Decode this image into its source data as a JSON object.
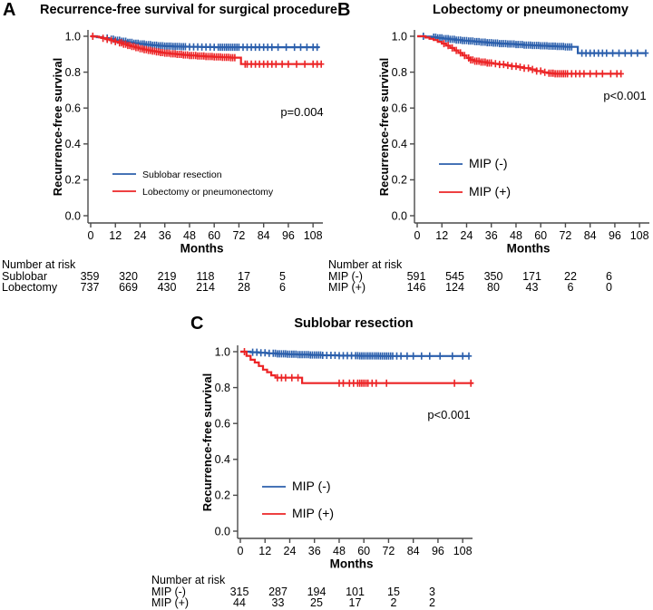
{
  "figure": {
    "bg": "#ffffff",
    "colors": {
      "blue": "#2B5FAC",
      "red": "#EC2426",
      "axis": "#4A4A4A",
      "text": "#000000"
    }
  },
  "chart_data": [
    {
      "type": "line",
      "subtype": "kaplan-meier-step",
      "panel_letter": "A",
      "title": "Recurrence-free survival for surgical procedure",
      "xlabel": "Months",
      "ylabel": "Recurrence-free survival",
      "p_label": "p=0.004",
      "xticks": [
        0,
        12,
        24,
        36,
        48,
        60,
        72,
        84,
        96,
        108
      ],
      "yticks": [
        0.0,
        0.2,
        0.4,
        0.6,
        0.8,
        1.0
      ],
      "xlim": [
        0,
        114
      ],
      "ylim": [
        0.0,
        1.0
      ],
      "grid": false,
      "legend_position": "inside-lower-left",
      "series": [
        {
          "name": "Sublobar resection",
          "color": "blue",
          "end_month": 111,
          "steps": [
            [
              3,
              0.995
            ],
            [
              6,
              0.99
            ],
            [
              9,
              0.984
            ],
            [
              12,
              0.978
            ],
            [
              15,
              0.972
            ],
            [
              18,
              0.966
            ],
            [
              21,
              0.961
            ],
            [
              24,
              0.957
            ],
            [
              27,
              0.953
            ],
            [
              30,
              0.95
            ],
            [
              33,
              0.947
            ],
            [
              36,
              0.945
            ],
            [
              40,
              0.943
            ],
            [
              44,
              0.942
            ],
            [
              48,
              0.941
            ],
            [
              54,
              0.94
            ],
            [
              60,
              0.939
            ]
          ],
          "censor_months": [
            8,
            10,
            11,
            12,
            13,
            14,
            15,
            16,
            17,
            18,
            19,
            20,
            21,
            22,
            23,
            24,
            25,
            26,
            27,
            28,
            29,
            30,
            31,
            32,
            33,
            34,
            35,
            36,
            37,
            38,
            39,
            40,
            41,
            42,
            43,
            44,
            45,
            46,
            48,
            50,
            52,
            54,
            56,
            58,
            60,
            62,
            63,
            64,
            65,
            66,
            67,
            68,
            69,
            70,
            71,
            72,
            74,
            76,
            78,
            80,
            82,
            84,
            86,
            88,
            91,
            95,
            99,
            102,
            105,
            108,
            110
          ]
        },
        {
          "name": "Lobectomy or pneumonectomy",
          "color": "red",
          "end_month": 112,
          "steps": [
            [
              2,
              0.998
            ],
            [
              4,
              0.994
            ],
            [
              6,
              0.989
            ],
            [
              8,
              0.983
            ],
            [
              10,
              0.977
            ],
            [
              12,
              0.97
            ],
            [
              14,
              0.963
            ],
            [
              16,
              0.956
            ],
            [
              18,
              0.949
            ],
            [
              20,
              0.943
            ],
            [
              22,
              0.937
            ],
            [
              24,
              0.931
            ],
            [
              26,
              0.926
            ],
            [
              28,
              0.921
            ],
            [
              30,
              0.917
            ],
            [
              32,
              0.913
            ],
            [
              34,
              0.909
            ],
            [
              36,
              0.906
            ],
            [
              39,
              0.902
            ],
            [
              42,
              0.899
            ],
            [
              45,
              0.896
            ],
            [
              48,
              0.893
            ],
            [
              52,
              0.89
            ],
            [
              56,
              0.887
            ],
            [
              60,
              0.885
            ],
            [
              64,
              0.883
            ],
            [
              68,
              0.881
            ],
            [
              73,
              0.845
            ]
          ],
          "censor_months": [
            1,
            6,
            8,
            10,
            12,
            14,
            15,
            16,
            17,
            18,
            19,
            20,
            21,
            22,
            23,
            24,
            25,
            26,
            27,
            28,
            29,
            30,
            31,
            32,
            33,
            34,
            35,
            36,
            37,
            38,
            39,
            40,
            41,
            42,
            43,
            44,
            45,
            46,
            47,
            48,
            49,
            50,
            51,
            52,
            53,
            54,
            55,
            56,
            57,
            58,
            59,
            60,
            61,
            62,
            63,
            64,
            65,
            66,
            67,
            68,
            69,
            70,
            75,
            76,
            78,
            80,
            82,
            84,
            86,
            88,
            90,
            93,
            96,
            100,
            104,
            108,
            110,
            112
          ]
        }
      ],
      "number_at_risk": {
        "title": "Number at risk",
        "rows": [
          {
            "label": "Sublobar",
            "counts": [
              "359",
              "320",
              "219",
              "118",
              "17",
              "5"
            ]
          },
          {
            "label": "Lobectomy",
            "counts": [
              "737",
              "669",
              "430",
              "214",
              "28",
              "6"
            ]
          }
        ]
      }
    },
    {
      "type": "line",
      "subtype": "kaplan-meier-step",
      "panel_letter": "B",
      "title": "Lobectomy or pneumonectomy",
      "xlabel": "Months",
      "ylabel": "Recurrence-free survival",
      "p_label": "p<0.001",
      "xticks": [
        0,
        12,
        24,
        36,
        48,
        60,
        72,
        84,
        96,
        108
      ],
      "yticks": [
        0.0,
        0.2,
        0.4,
        0.6,
        0.8,
        1.0
      ],
      "xlim": [
        0,
        114
      ],
      "ylim": [
        0.0,
        1.0
      ],
      "grid": false,
      "legend_position": "inside-lower-left",
      "series": [
        {
          "name": "MIP (-)",
          "color": "blue",
          "end_month": 111,
          "steps": [
            [
              4,
              0.998
            ],
            [
              7,
              0.995
            ],
            [
              10,
              0.991
            ],
            [
              13,
              0.987
            ],
            [
              16,
              0.983
            ],
            [
              19,
              0.979
            ],
            [
              22,
              0.976
            ],
            [
              25,
              0.973
            ],
            [
              28,
              0.97
            ],
            [
              31,
              0.967
            ],
            [
              34,
              0.964
            ],
            [
              37,
              0.962
            ],
            [
              40,
              0.959
            ],
            [
              44,
              0.957
            ],
            [
              48,
              0.954
            ],
            [
              52,
              0.951
            ],
            [
              56,
              0.949
            ],
            [
              60,
              0.947
            ],
            [
              64,
              0.945
            ],
            [
              68,
              0.943
            ],
            [
              72,
              0.941
            ],
            [
              78,
              0.906
            ]
          ],
          "censor_months": [
            3,
            8,
            9,
            10,
            11,
            12,
            13,
            14,
            15,
            16,
            17,
            18,
            19,
            20,
            21,
            22,
            23,
            24,
            25,
            26,
            27,
            28,
            29,
            30,
            31,
            32,
            33,
            34,
            35,
            36,
            37,
            38,
            39,
            40,
            41,
            42,
            43,
            44,
            45,
            46,
            47,
            48,
            49,
            50,
            51,
            52,
            53,
            54,
            55,
            56,
            57,
            58,
            59,
            60,
            61,
            62,
            63,
            64,
            65,
            66,
            67,
            68,
            69,
            70,
            71,
            72,
            73,
            74,
            75,
            80,
            82,
            84,
            86,
            88,
            90,
            92,
            95,
            98,
            101,
            104,
            107,
            111
          ]
        },
        {
          "name": "MIP (+)",
          "color": "red",
          "end_month": 99,
          "steps": [
            [
              4,
              0.993
            ],
            [
              6,
              0.986
            ],
            [
              8,
              0.979
            ],
            [
              10,
              0.969
            ],
            [
              12,
              0.959
            ],
            [
              14,
              0.948
            ],
            [
              16,
              0.935
            ],
            [
              18,
              0.921
            ],
            [
              20,
              0.907
            ],
            [
              22,
              0.893
            ],
            [
              24,
              0.879
            ],
            [
              26,
              0.868
            ],
            [
              28,
              0.861
            ],
            [
              31,
              0.856
            ],
            [
              34,
              0.851
            ],
            [
              37,
              0.847
            ],
            [
              40,
              0.843
            ],
            [
              43,
              0.838
            ],
            [
              46,
              0.833
            ],
            [
              49,
              0.828
            ],
            [
              52,
              0.822
            ],
            [
              55,
              0.815
            ],
            [
              58,
              0.806
            ],
            [
              61,
              0.799
            ],
            [
              64,
              0.794
            ],
            [
              67,
              0.791
            ]
          ],
          "censor_months": [
            13,
            15,
            17,
            19,
            21,
            23,
            25,
            26,
            27,
            28,
            29,
            30,
            31,
            32,
            33,
            34,
            35,
            36,
            38,
            40,
            42,
            44,
            46,
            48,
            50,
            52,
            54,
            56,
            58,
            60,
            62,
            64,
            65,
            66,
            67,
            68,
            69,
            70,
            71,
            72,
            73,
            75,
            77,
            79,
            81,
            84,
            87,
            90,
            94,
            97,
            99
          ]
        }
      ],
      "number_at_risk": {
        "title": "Number at risk",
        "rows": [
          {
            "label": "MIP (-)",
            "counts": [
              "591",
              "545",
              "350",
              "171",
              "22",
              "6"
            ]
          },
          {
            "label": "MIP (+)",
            "counts": [
              "146",
              "124",
              "80",
              "43",
              "6",
              "0"
            ]
          }
        ]
      }
    },
    {
      "type": "line",
      "subtype": "kaplan-meier-step",
      "panel_letter": "C",
      "title": "Sublobar resection",
      "xlabel": "Months",
      "ylabel": "Recurrence-free survival",
      "p_label": "p<0.001",
      "xticks": [
        0,
        12,
        24,
        36,
        48,
        60,
        72,
        84,
        96,
        108
      ],
      "yticks": [
        0.0,
        0.2,
        0.4,
        0.6,
        0.8,
        1.0
      ],
      "xlim": [
        0,
        114
      ],
      "ylim": [
        0.0,
        1.0
      ],
      "grid": false,
      "legend_position": "inside-lower-left",
      "series": [
        {
          "name": "MIP (-)",
          "color": "blue",
          "end_month": 111,
          "steps": [
            [
              5,
              0.997
            ],
            [
              9,
              0.994
            ],
            [
              13,
              0.991
            ],
            [
              18,
              0.988
            ],
            [
              23,
              0.986
            ],
            [
              28,
              0.984
            ],
            [
              34,
              0.982
            ],
            [
              40,
              0.98
            ],
            [
              48,
              0.978
            ],
            [
              58,
              0.977
            ],
            [
              68,
              0.976
            ]
          ],
          "censor_months": [
            6,
            8,
            10,
            12,
            14,
            16,
            17,
            18,
            19,
            20,
            21,
            22,
            23,
            24,
            25,
            26,
            27,
            28,
            29,
            30,
            31,
            32,
            33,
            34,
            35,
            36,
            37,
            38,
            39,
            40,
            42,
            44,
            46,
            48,
            50,
            52,
            54,
            56,
            57,
            58,
            59,
            60,
            61,
            62,
            63,
            64,
            65,
            66,
            67,
            68,
            69,
            70,
            71,
            72,
            73,
            74,
            76,
            78,
            81,
            84,
            88,
            92,
            97,
            103,
            108,
            111
          ]
        },
        {
          "name": "MIP (+)",
          "color": "red",
          "end_month": 113,
          "steps": [
            [
              3,
              0.977
            ],
            [
              5,
              0.955
            ],
            [
              7,
              0.94
            ],
            [
              9,
              0.92
            ],
            [
              11,
              0.9
            ],
            [
              13,
              0.886
            ],
            [
              15,
              0.868
            ],
            [
              17,
              0.855
            ],
            [
              30,
              0.825
            ]
          ],
          "censor_months": [
            2,
            18,
            20,
            22,
            25,
            28,
            48,
            50,
            53,
            55,
            57,
            58,
            59,
            60,
            61,
            62,
            64,
            66,
            71,
            104,
            112
          ]
        }
      ],
      "number_at_risk": {
        "title": "Number at risk",
        "rows": [
          {
            "label": "MIP (-)",
            "counts": [
              "315",
              "287",
              "194",
              "101",
              "15",
              "3"
            ]
          },
          {
            "label": "MIP (+)",
            "counts": [
              "44",
              "33",
              "25",
              "17",
              "2",
              "2"
            ]
          }
        ]
      }
    }
  ]
}
